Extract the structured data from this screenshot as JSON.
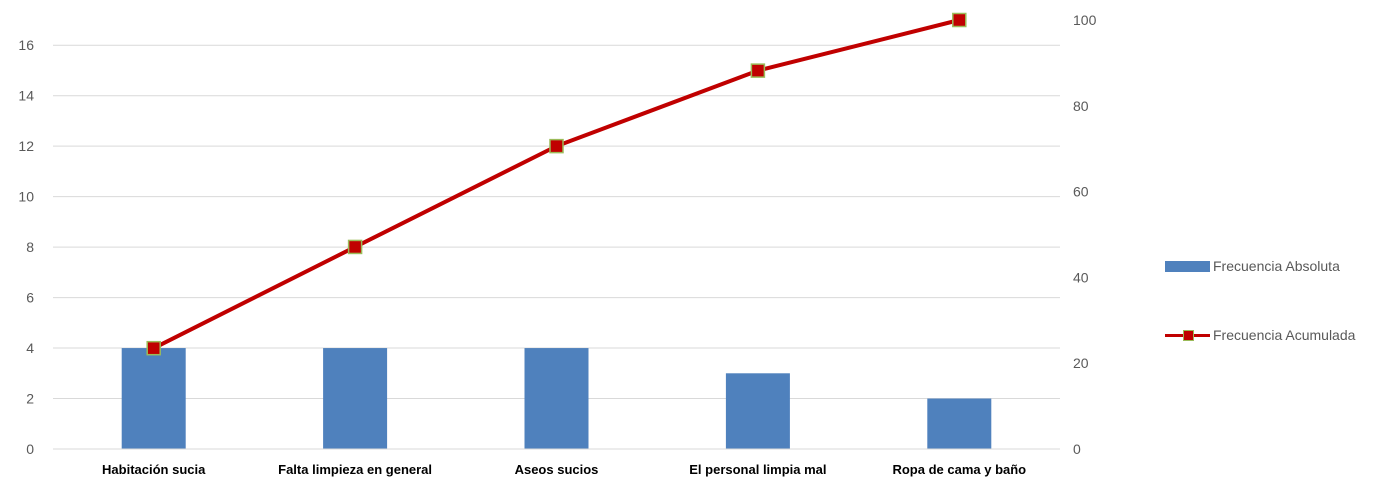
{
  "chart_data": {
    "type": "bar",
    "categories": [
      "Habitación sucia",
      "Falta limpieza en general",
      "Aseos sucios",
      "El personal limpia mal",
      "Ropa de cama y baño"
    ],
    "series": [
      {
        "name": "Frecuencia Absoluta",
        "type": "bar",
        "axis": "left",
        "values": [
          4,
          4,
          4,
          3,
          2
        ],
        "color": "#4f81bd"
      },
      {
        "name": "Frecuencia Acumulada",
        "type": "line",
        "axis": "right",
        "values": [
          23.5,
          47.1,
          70.6,
          88.2,
          100
        ],
        "color": "#c00000",
        "marker_color": "#c00000",
        "marker_edge": "#9bbb59"
      }
    ],
    "title": "",
    "xlabel": "",
    "ylabel": "",
    "ylim": [
      0,
      17
    ],
    "yticks": [
      0,
      2,
      4,
      6,
      8,
      10,
      12,
      14,
      16
    ],
    "y2lim": [
      0,
      100
    ],
    "y2ticks": [
      0,
      20,
      40,
      60,
      80,
      100
    ],
    "grid": true,
    "grid_color": "#d9d9d9",
    "legend_position": "right"
  }
}
